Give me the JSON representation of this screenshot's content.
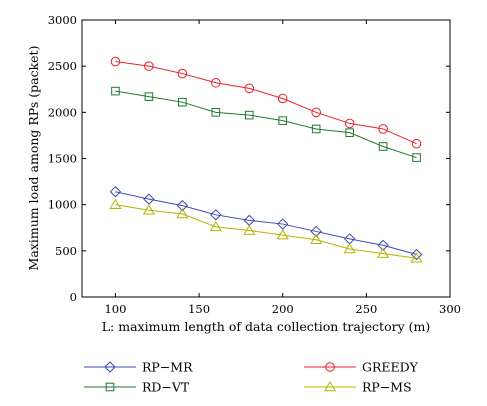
{
  "chart_data": {
    "type": "line",
    "xlabel": "L: maximum length of data collection trajectory (m)",
    "ylabel": "Maximum load among RPs (packet)",
    "xlim": [
      80,
      300
    ],
    "ylim": [
      0,
      3000
    ],
    "xticks": [
      100,
      150,
      200,
      250,
      300
    ],
    "yticks": [
      0,
      500,
      1000,
      1500,
      2000,
      2500,
      3000
    ],
    "x": [
      100,
      120,
      140,
      160,
      180,
      200,
      220,
      240,
      260,
      280
    ],
    "grid": false,
    "legend_position": "bottom",
    "series": [
      {
        "name": "RP−MR",
        "marker": "diamond",
        "color": "#3b4bb0",
        "values": [
          1140,
          1060,
          990,
          890,
          830,
          790,
          710,
          630,
          560,
          460
        ]
      },
      {
        "name": "GREEDY",
        "marker": "circle",
        "color": "#e8212b",
        "values": [
          2550,
          2500,
          2420,
          2320,
          2260,
          2150,
          2000,
          1880,
          1820,
          1660
        ]
      },
      {
        "name": "RD−VT",
        "marker": "square",
        "color": "#1e7a2e",
        "values": [
          2230,
          2170,
          2110,
          2000,
          1970,
          1910,
          1820,
          1780,
          1630,
          1510
        ]
      },
      {
        "name": "RP−MS",
        "marker": "triangle",
        "color": "#b7b400",
        "values": [
          1000,
          940,
          900,
          760,
          720,
          670,
          620,
          520,
          470,
          420
        ]
      }
    ]
  }
}
